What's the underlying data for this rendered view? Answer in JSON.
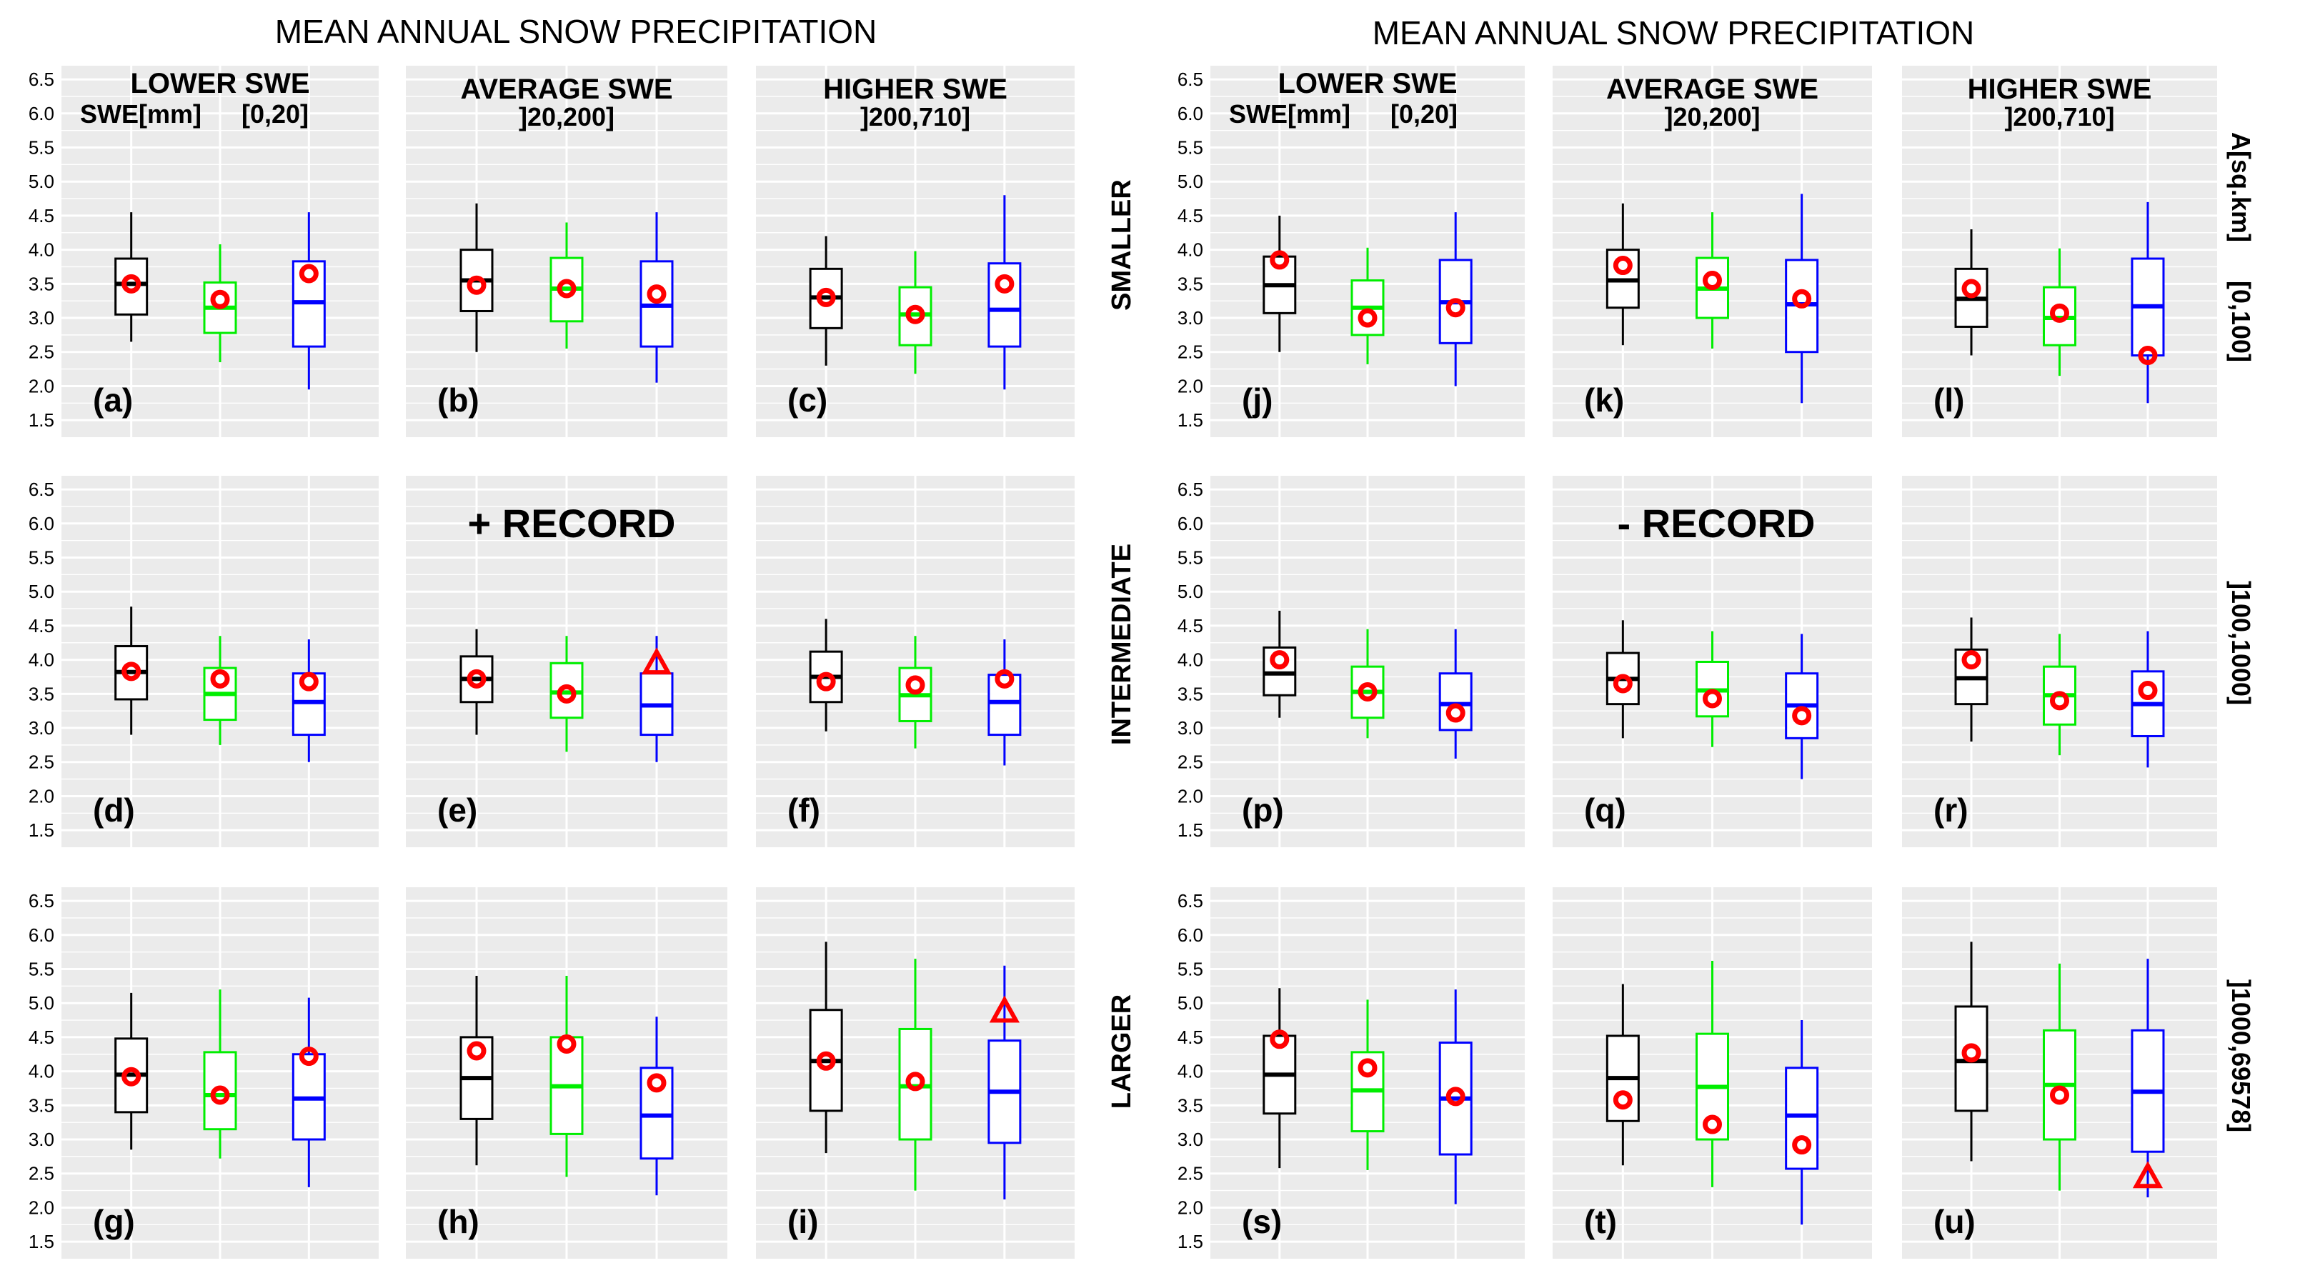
{
  "left_title": "MEAN ANNUAL SNOW PRECIPITATION",
  "right_title": "MEAN ANNUAL SNOW PRECIPITATION",
  "left_annotation": "+ RECORD",
  "right_annotation": "- RECORD",
  "swe_unit_label": "SWE[mm]",
  "area_unit_label": "A[sq.km]",
  "column_headers": [
    {
      "name": "LOWER SWE",
      "range": "[0,20]"
    },
    {
      "name": "AVERAGE SWE",
      "range": "]20,200]"
    },
    {
      "name": "HIGHER SWE",
      "range": "]200,710]"
    }
  ],
  "row_labels": [
    "SMALLER",
    "INTERMEDIATE",
    "LARGER"
  ],
  "area_ranges": [
    "[0,100]",
    "]100,1000]",
    "]1000,69578]"
  ],
  "colors": {
    "series1": "#000000",
    "series2": "#00ee00",
    "series3": "#0000ff",
    "marker": "#ff0000",
    "panel": "#ebebeb",
    "grid": "#ffffff",
    "tick_text": "#4d4d4d"
  },
  "chart_data": {
    "type": "box",
    "ylim": [
      1.5,
      6.5
    ],
    "y_ticks": [
      "1.5",
      "2.0",
      "2.5",
      "3.0",
      "3.5",
      "4.0",
      "4.5",
      "5.0",
      "5.5",
      "6.0",
      "6.5"
    ],
    "series_names": [
      "black",
      "green",
      "blue"
    ],
    "legend_note": "circle = recorded value; triangle = record outside whiskers",
    "panels": [
      {
        "label": "(a)",
        "boxes": [
          {
            "min": 2.65,
            "q1": 3.05,
            "median": 3.5,
            "q3": 3.87,
            "max": 4.55,
            "pt": 3.5
          },
          {
            "min": 2.35,
            "q1": 2.78,
            "median": 3.15,
            "q3": 3.52,
            "max": 4.08,
            "pt": 3.27
          },
          {
            "min": 1.95,
            "q1": 2.58,
            "median": 3.23,
            "q3": 3.83,
            "max": 4.55,
            "pt": 3.65
          }
        ]
      },
      {
        "label": "(b)",
        "boxes": [
          {
            "min": 2.5,
            "q1": 3.1,
            "median": 3.55,
            "q3": 4.0,
            "max": 4.68,
            "pt": 3.48
          },
          {
            "min": 2.55,
            "q1": 2.95,
            "median": 3.43,
            "q3": 3.88,
            "max": 4.4,
            "pt": 3.43
          },
          {
            "min": 2.05,
            "q1": 2.58,
            "median": 3.18,
            "q3": 3.83,
            "max": 4.55,
            "pt": 3.35
          }
        ]
      },
      {
        "label": "(c)",
        "boxes": [
          {
            "min": 2.3,
            "q1": 2.85,
            "median": 3.3,
            "q3": 3.72,
            "max": 4.2,
            "pt": 3.3
          },
          {
            "min": 2.18,
            "q1": 2.6,
            "median": 3.05,
            "q3": 3.45,
            "max": 3.98,
            "pt": 3.05
          },
          {
            "min": 1.95,
            "q1": 2.58,
            "median": 3.12,
            "q3": 3.8,
            "max": 4.8,
            "pt": 3.5
          }
        ]
      },
      {
        "label": "(d)",
        "boxes": [
          {
            "min": 2.9,
            "q1": 3.42,
            "median": 3.82,
            "q3": 4.2,
            "max": 4.78,
            "pt": 3.83
          },
          {
            "min": 2.75,
            "q1": 3.12,
            "median": 3.5,
            "q3": 3.88,
            "max": 4.35,
            "pt": 3.72
          },
          {
            "min": 2.5,
            "q1": 2.9,
            "median": 3.38,
            "q3": 3.8,
            "max": 4.3,
            "pt": 3.68
          }
        ]
      },
      {
        "label": "(e)",
        "boxes": [
          {
            "min": 2.9,
            "q1": 3.38,
            "median": 3.72,
            "q3": 4.05,
            "max": 4.45,
            "pt": 3.72
          },
          {
            "min": 2.65,
            "q1": 3.15,
            "median": 3.52,
            "q3": 3.95,
            "max": 4.35,
            "pt": 3.5
          },
          {
            "min": 2.5,
            "q1": 2.9,
            "median": 3.33,
            "q3": 3.8,
            "max": 4.35,
            "pt": 3.95,
            "marker": "triangle"
          }
        ]
      },
      {
        "label": "(f)",
        "boxes": [
          {
            "min": 2.95,
            "q1": 3.38,
            "median": 3.75,
            "q3": 4.12,
            "max": 4.6,
            "pt": 3.68
          },
          {
            "min": 2.7,
            "q1": 3.1,
            "median": 3.48,
            "q3": 3.88,
            "max": 4.35,
            "pt": 3.63
          },
          {
            "min": 2.45,
            "q1": 2.9,
            "median": 3.38,
            "q3": 3.78,
            "max": 4.3,
            "pt": 3.72
          }
        ]
      },
      {
        "label": "(g)",
        "boxes": [
          {
            "min": 2.85,
            "q1": 3.4,
            "median": 3.95,
            "q3": 4.48,
            "max": 5.15,
            "pt": 3.92
          },
          {
            "min": 2.72,
            "q1": 3.15,
            "median": 3.65,
            "q3": 4.28,
            "max": 5.2,
            "pt": 3.65
          },
          {
            "min": 2.3,
            "q1": 3.0,
            "median": 3.6,
            "q3": 4.25,
            "max": 5.08,
            "pt": 4.22
          }
        ]
      },
      {
        "label": "(h)",
        "boxes": [
          {
            "min": 2.62,
            "q1": 3.3,
            "median": 3.9,
            "q3": 4.5,
            "max": 5.4,
            "pt": 4.3
          },
          {
            "min": 2.45,
            "q1": 3.08,
            "median": 3.78,
            "q3": 4.5,
            "max": 5.4,
            "pt": 4.4
          },
          {
            "min": 2.18,
            "q1": 2.72,
            "median": 3.35,
            "q3": 4.05,
            "max": 4.8,
            "pt": 3.83
          }
        ]
      },
      {
        "label": "(i)",
        "boxes": [
          {
            "min": 2.8,
            "q1": 3.42,
            "median": 4.15,
            "q3": 4.9,
            "max": 5.9,
            "pt": 4.15
          },
          {
            "min": 2.25,
            "q1": 3.0,
            "median": 3.78,
            "q3": 4.62,
            "max": 5.65,
            "pt": 3.85
          },
          {
            "min": 2.12,
            "q1": 2.95,
            "median": 3.7,
            "q3": 4.45,
            "max": 5.55,
            "pt": 4.88,
            "marker": "triangle"
          }
        ]
      },
      {
        "label": "(j)",
        "boxes": [
          {
            "min": 2.5,
            "q1": 3.07,
            "median": 3.48,
            "q3": 3.9,
            "max": 4.5,
            "pt": 3.85
          },
          {
            "min": 2.32,
            "q1": 2.75,
            "median": 3.15,
            "q3": 3.55,
            "max": 4.03,
            "pt": 3.0
          },
          {
            "min": 2.0,
            "q1": 2.63,
            "median": 3.23,
            "q3": 3.85,
            "max": 4.55,
            "pt": 3.15
          }
        ]
      },
      {
        "label": "(k)",
        "boxes": [
          {
            "min": 2.6,
            "q1": 3.15,
            "median": 3.55,
            "q3": 4.0,
            "max": 4.68,
            "pt": 3.77
          },
          {
            "min": 2.55,
            "q1": 3.0,
            "median": 3.43,
            "q3": 3.88,
            "max": 4.55,
            "pt": 3.55
          },
          {
            "min": 1.75,
            "q1": 2.5,
            "median": 3.2,
            "q3": 3.85,
            "max": 4.82,
            "pt": 3.28
          }
        ]
      },
      {
        "label": "(l)",
        "boxes": [
          {
            "min": 2.45,
            "q1": 2.87,
            "median": 3.28,
            "q3": 3.72,
            "max": 4.3,
            "pt": 3.43
          },
          {
            "min": 2.15,
            "q1": 2.6,
            "median": 3.0,
            "q3": 3.45,
            "max": 4.02,
            "pt": 3.07
          },
          {
            "min": 1.75,
            "q1": 2.45,
            "median": 3.17,
            "q3": 3.87,
            "max": 4.7,
            "pt": 2.45
          }
        ]
      },
      {
        "label": "(p)",
        "boxes": [
          {
            "min": 3.15,
            "q1": 3.48,
            "median": 3.8,
            "q3": 4.18,
            "max": 4.72,
            "pt": 4.0
          },
          {
            "min": 2.85,
            "q1": 3.15,
            "median": 3.53,
            "q3": 3.9,
            "max": 4.45,
            "pt": 3.53
          },
          {
            "min": 2.55,
            "q1": 2.97,
            "median": 3.35,
            "q3": 3.8,
            "max": 4.45,
            "pt": 3.22
          }
        ]
      },
      {
        "label": "(q)",
        "boxes": [
          {
            "min": 2.85,
            "q1": 3.35,
            "median": 3.72,
            "q3": 4.1,
            "max": 4.58,
            "pt": 3.65
          },
          {
            "min": 2.72,
            "q1": 3.17,
            "median": 3.55,
            "q3": 3.97,
            "max": 4.42,
            "pt": 3.43
          },
          {
            "min": 2.25,
            "q1": 2.85,
            "median": 3.33,
            "q3": 3.8,
            "max": 4.38,
            "pt": 3.18
          }
        ]
      },
      {
        "label": "(r)",
        "boxes": [
          {
            "min": 2.8,
            "q1": 3.35,
            "median": 3.73,
            "q3": 4.15,
            "max": 4.62,
            "pt": 4.0
          },
          {
            "min": 2.6,
            "q1": 3.05,
            "median": 3.48,
            "q3": 3.9,
            "max": 4.38,
            "pt": 3.4
          },
          {
            "min": 2.42,
            "q1": 2.88,
            "median": 3.35,
            "q3": 3.83,
            "max": 4.42,
            "pt": 3.55
          }
        ]
      },
      {
        "label": "(s)",
        "boxes": [
          {
            "min": 2.58,
            "q1": 3.38,
            "median": 3.95,
            "q3": 4.52,
            "max": 5.22,
            "pt": 4.47
          },
          {
            "min": 2.55,
            "q1": 3.12,
            "median": 3.72,
            "q3": 4.28,
            "max": 5.05,
            "pt": 4.05
          },
          {
            "min": 2.05,
            "q1": 2.78,
            "median": 3.6,
            "q3": 4.42,
            "max": 5.2,
            "pt": 3.63
          }
        ]
      },
      {
        "label": "(t)",
        "boxes": [
          {
            "min": 2.62,
            "q1": 3.27,
            "median": 3.9,
            "q3": 4.52,
            "max": 5.28,
            "pt": 3.58
          },
          {
            "min": 2.3,
            "q1": 3.0,
            "median": 3.77,
            "q3": 4.55,
            "max": 5.62,
            "pt": 3.22
          },
          {
            "min": 1.75,
            "q1": 2.57,
            "median": 3.35,
            "q3": 4.05,
            "max": 4.75,
            "pt": 2.92
          }
        ]
      },
      {
        "label": "(u)",
        "boxes": [
          {
            "min": 2.68,
            "q1": 3.42,
            "median": 4.15,
            "q3": 4.95,
            "max": 5.9,
            "pt": 4.27
          },
          {
            "min": 2.25,
            "q1": 3.0,
            "median": 3.8,
            "q3": 4.6,
            "max": 5.58,
            "pt": 3.65
          },
          {
            "min": 2.15,
            "q1": 2.82,
            "median": 3.7,
            "q3": 4.6,
            "max": 5.65,
            "pt": 2.45,
            "marker": "triangle"
          }
        ]
      }
    ]
  }
}
